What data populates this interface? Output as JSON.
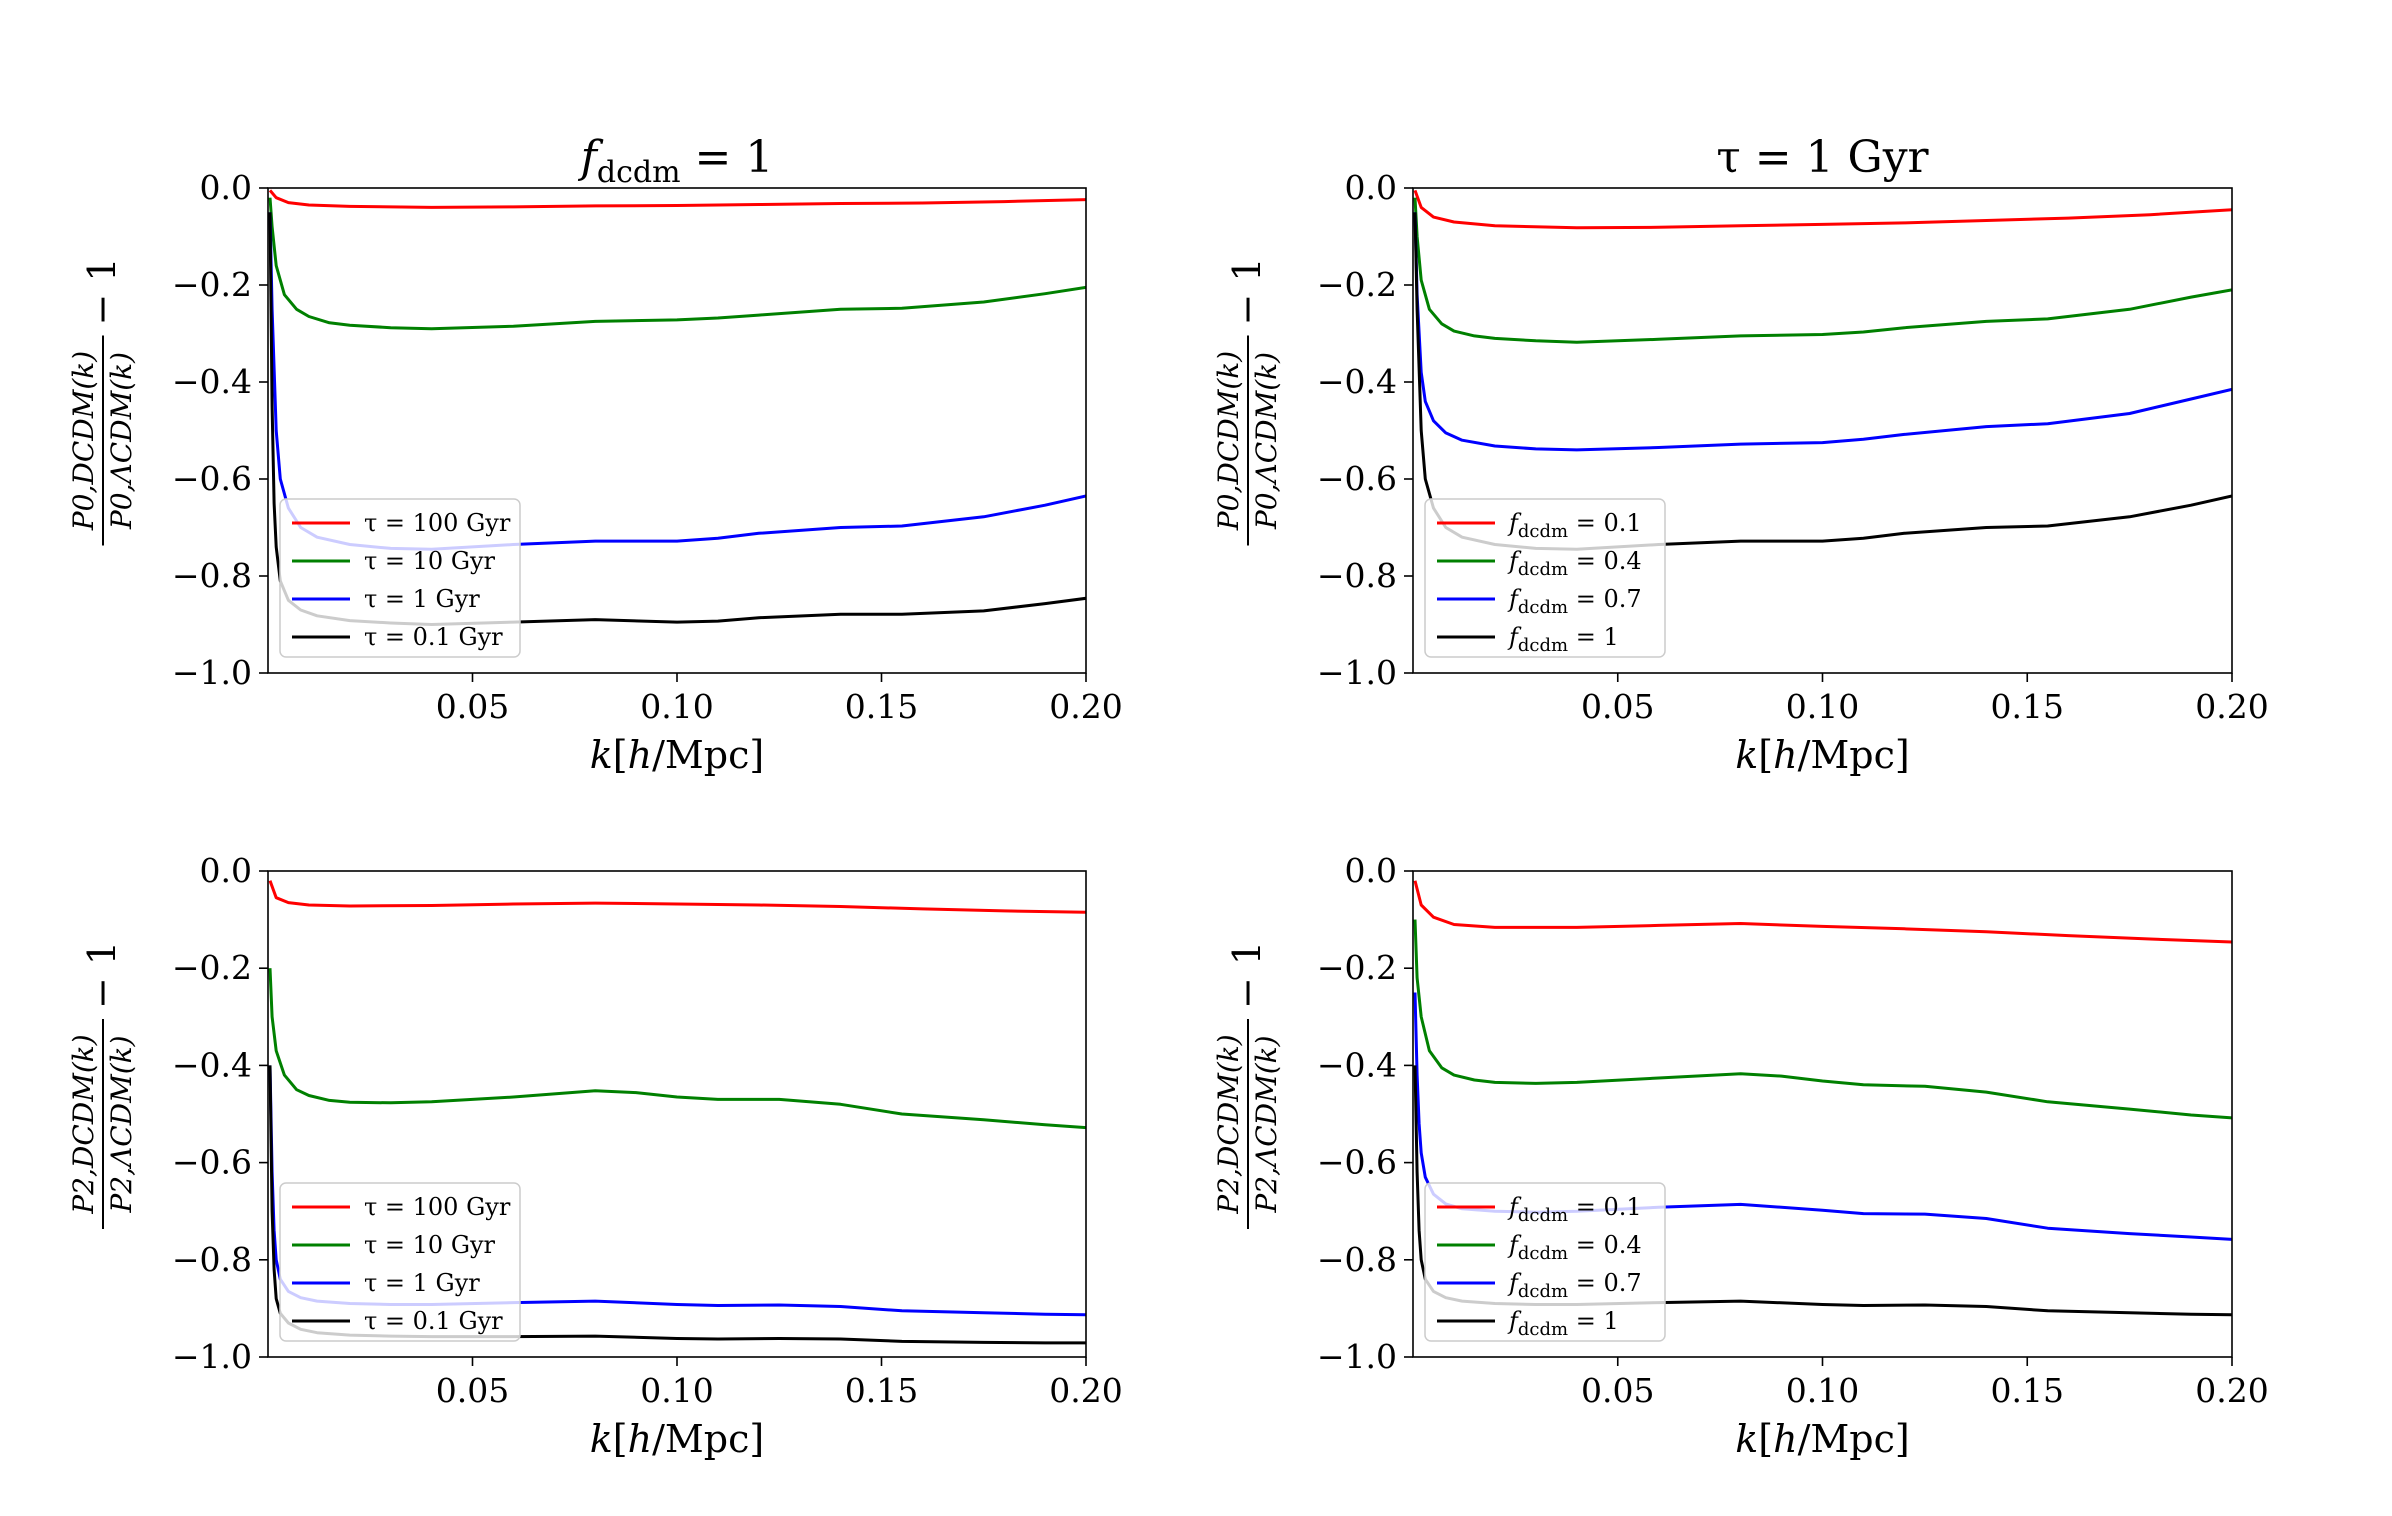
{
  "chart_data": [
    {
      "type": "line",
      "panel": "top-left",
      "title": "f_dcdm = 1",
      "title_main": "f",
      "title_sub": "dcdm",
      "title_rest": " = 1",
      "xlabel": "k [h/Mpc]",
      "ylabel": "P_{0,DCDM}(k) / P_{0,ΛCDM}(k) − 1",
      "ylabel_sub": "0",
      "xlim": [
        0.0,
        0.2
      ],
      "ylim": [
        -1.0,
        0.0
      ],
      "xticks": [
        0.05,
        0.1,
        0.15,
        0.2
      ],
      "xtick_labels": [
        "0.05",
        "0.10",
        "0.15",
        "0.20"
      ],
      "yticks": [
        0.0,
        -0.2,
        -0.4,
        -0.6,
        -0.8,
        -1.0
      ],
      "ytick_labels": [
        "0.0",
        "−0.2",
        "−0.4",
        "−0.6",
        "−0.8",
        "−1.0"
      ],
      "legend_position": "lower-left",
      "series": [
        {
          "name": "τ = 100 Gyr",
          "color": "#ff0000",
          "x": [
            0.0005,
            0.002,
            0.005,
            0.01,
            0.02,
            0.04,
            0.06,
            0.08,
            0.1,
            0.12,
            0.14,
            0.16,
            0.18,
            0.2
          ],
          "values": [
            -0.005,
            -0.02,
            -0.03,
            -0.035,
            -0.038,
            -0.04,
            -0.039,
            -0.037,
            -0.036,
            -0.034,
            -0.032,
            -0.031,
            -0.028,
            -0.024
          ]
        },
        {
          "name": "τ = 10 Gyr",
          "color": "#008000",
          "x": [
            0.0005,
            0.001,
            0.002,
            0.004,
            0.007,
            0.01,
            0.015,
            0.02,
            0.03,
            0.04,
            0.06,
            0.08,
            0.1,
            0.11,
            0.12,
            0.14,
            0.155,
            0.175,
            0.19,
            0.2
          ],
          "values": [
            -0.02,
            -0.08,
            -0.16,
            -0.22,
            -0.25,
            -0.265,
            -0.278,
            -0.283,
            -0.288,
            -0.29,
            -0.285,
            -0.275,
            -0.272,
            -0.268,
            -0.262,
            -0.25,
            -0.248,
            -0.235,
            -0.218,
            -0.205
          ]
        },
        {
          "name": "τ = 1 Gyr",
          "color": "#0000ff",
          "x": [
            0.0005,
            0.001,
            0.002,
            0.003,
            0.005,
            0.008,
            0.012,
            0.02,
            0.03,
            0.04,
            0.06,
            0.08,
            0.1,
            0.11,
            0.12,
            0.14,
            0.155,
            0.175,
            0.19,
            0.2
          ],
          "values": [
            -0.05,
            -0.25,
            -0.5,
            -0.6,
            -0.66,
            -0.7,
            -0.72,
            -0.735,
            -0.743,
            -0.745,
            -0.735,
            -0.728,
            -0.728,
            -0.722,
            -0.712,
            -0.7,
            -0.697,
            -0.678,
            -0.654,
            -0.635
          ]
        },
        {
          "name": "τ = 0.1 Gyr",
          "color": "#000000",
          "x": [
            0.0005,
            0.001,
            0.0015,
            0.002,
            0.003,
            0.005,
            0.008,
            0.012,
            0.02,
            0.03,
            0.04,
            0.06,
            0.08,
            0.1,
            0.11,
            0.12,
            0.14,
            0.155,
            0.175,
            0.19,
            0.2
          ],
          "values": [
            -0.05,
            -0.45,
            -0.65,
            -0.74,
            -0.81,
            -0.85,
            -0.87,
            -0.882,
            -0.892,
            -0.897,
            -0.9,
            -0.895,
            -0.89,
            -0.895,
            -0.893,
            -0.886,
            -0.879,
            -0.879,
            -0.872,
            -0.857,
            -0.846
          ]
        }
      ]
    },
    {
      "type": "line",
      "panel": "top-right",
      "title": "τ = 1 Gyr",
      "title_main": "τ = 1 Gyr",
      "xlabel": "k [h/Mpc]",
      "ylabel": "P_{0,DCDM}(k) / P_{0,ΛCDM}(k) − 1",
      "ylabel_sub": "0",
      "xlim": [
        0.0,
        0.2
      ],
      "ylim": [
        -1.0,
        0.0
      ],
      "xticks": [
        0.05,
        0.1,
        0.15,
        0.2
      ],
      "xtick_labels": [
        "0.05",
        "0.10",
        "0.15",
        "0.20"
      ],
      "yticks": [
        0.0,
        -0.2,
        -0.4,
        -0.6,
        -0.8,
        -1.0
      ],
      "ytick_labels": [
        "0.0",
        "−0.2",
        "−0.4",
        "−0.6",
        "−0.8",
        "−1.0"
      ],
      "legend_position": "lower-left",
      "series": [
        {
          "name": "f_dcdm = 0.1",
          "value_label": " = 0.1",
          "color": "#ff0000",
          "x": [
            0.0005,
            0.002,
            0.005,
            0.01,
            0.02,
            0.04,
            0.06,
            0.08,
            0.1,
            0.12,
            0.14,
            0.16,
            0.18,
            0.2
          ],
          "values": [
            -0.005,
            -0.04,
            -0.06,
            -0.07,
            -0.078,
            -0.082,
            -0.081,
            -0.078,
            -0.075,
            -0.072,
            -0.067,
            -0.062,
            -0.055,
            -0.045
          ]
        },
        {
          "name": "f_dcdm = 0.4",
          "value_label": " = 0.4",
          "color": "#008000",
          "x": [
            0.0005,
            0.001,
            0.002,
            0.004,
            0.007,
            0.01,
            0.015,
            0.02,
            0.03,
            0.04,
            0.06,
            0.08,
            0.1,
            0.11,
            0.12,
            0.14,
            0.155,
            0.175,
            0.19,
            0.2
          ],
          "values": [
            -0.02,
            -0.1,
            -0.19,
            -0.25,
            -0.28,
            -0.295,
            -0.305,
            -0.31,
            -0.315,
            -0.318,
            -0.312,
            -0.305,
            -0.302,
            -0.297,
            -0.288,
            -0.275,
            -0.27,
            -0.25,
            -0.225,
            -0.21
          ]
        },
        {
          "name": "f_dcdm = 0.7",
          "value_label": " = 0.7",
          "color": "#0000ff",
          "x": [
            0.0005,
            0.001,
            0.002,
            0.003,
            0.005,
            0.008,
            0.012,
            0.02,
            0.03,
            0.04,
            0.06,
            0.08,
            0.1,
            0.11,
            0.12,
            0.14,
            0.155,
            0.175,
            0.19,
            0.2
          ],
          "values": [
            -0.05,
            -0.22,
            -0.38,
            -0.44,
            -0.48,
            -0.505,
            -0.52,
            -0.532,
            -0.538,
            -0.54,
            -0.535,
            -0.528,
            -0.525,
            -0.518,
            -0.508,
            -0.492,
            -0.486,
            -0.465,
            -0.435,
            -0.415
          ]
        },
        {
          "name": "f_dcdm = 1",
          "value_label": " = 1",
          "color": "#000000",
          "x": [
            0.0005,
            0.001,
            0.002,
            0.003,
            0.005,
            0.008,
            0.012,
            0.02,
            0.03,
            0.04,
            0.06,
            0.08,
            0.1,
            0.11,
            0.12,
            0.14,
            0.155,
            0.175,
            0.19,
            0.2
          ],
          "values": [
            -0.05,
            -0.25,
            -0.5,
            -0.6,
            -0.66,
            -0.7,
            -0.72,
            -0.735,
            -0.743,
            -0.745,
            -0.735,
            -0.728,
            -0.728,
            -0.722,
            -0.712,
            -0.7,
            -0.697,
            -0.678,
            -0.654,
            -0.635
          ]
        }
      ]
    },
    {
      "type": "line",
      "panel": "bottom-left",
      "title": "",
      "xlabel": "k [h/Mpc]",
      "ylabel": "P_{2,DCDM}(k) / P_{2,ΛCDM}(k) − 1",
      "ylabel_sub": "2",
      "xlim": [
        0.0,
        0.2
      ],
      "ylim": [
        -1.0,
        0.0
      ],
      "xticks": [
        0.05,
        0.1,
        0.15,
        0.2
      ],
      "xtick_labels": [
        "0.05",
        "0.10",
        "0.15",
        "0.20"
      ],
      "yticks": [
        0.0,
        -0.2,
        -0.4,
        -0.6,
        -0.8,
        -1.0
      ],
      "ytick_labels": [
        "0.0",
        "−0.2",
        "−0.4",
        "−0.6",
        "−0.8",
        "−1.0"
      ],
      "legend_position": "lower-left",
      "series": [
        {
          "name": "τ = 100 Gyr",
          "color": "#ff0000",
          "x": [
            0.0005,
            0.002,
            0.005,
            0.01,
            0.02,
            0.04,
            0.06,
            0.08,
            0.1,
            0.12,
            0.14,
            0.16,
            0.18,
            0.2
          ],
          "values": [
            -0.02,
            -0.055,
            -0.065,
            -0.07,
            -0.072,
            -0.071,
            -0.068,
            -0.066,
            -0.068,
            -0.07,
            -0.073,
            -0.078,
            -0.082,
            -0.085
          ]
        },
        {
          "name": "τ = 10 Gyr",
          "color": "#008000",
          "x": [
            0.0005,
            0.001,
            0.002,
            0.004,
            0.007,
            0.01,
            0.015,
            0.02,
            0.03,
            0.04,
            0.06,
            0.08,
            0.09,
            0.1,
            0.11,
            0.125,
            0.14,
            0.155,
            0.175,
            0.19,
            0.2
          ],
          "values": [
            -0.2,
            -0.3,
            -0.37,
            -0.42,
            -0.45,
            -0.462,
            -0.472,
            -0.476,
            -0.477,
            -0.475,
            -0.465,
            -0.452,
            -0.456,
            -0.465,
            -0.47,
            -0.47,
            -0.48,
            -0.5,
            -0.512,
            -0.522,
            -0.528
          ]
        },
        {
          "name": "τ = 1 Gyr",
          "color": "#0000ff",
          "x": [
            0.0005,
            0.001,
            0.0015,
            0.002,
            0.003,
            0.005,
            0.008,
            0.012,
            0.02,
            0.03,
            0.04,
            0.06,
            0.08,
            0.1,
            0.11,
            0.125,
            0.14,
            0.155,
            0.175,
            0.19,
            0.2
          ],
          "values": [
            -0.4,
            -0.62,
            -0.74,
            -0.8,
            -0.84,
            -0.865,
            -0.878,
            -0.885,
            -0.89,
            -0.892,
            -0.892,
            -0.888,
            -0.885,
            -0.892,
            -0.894,
            -0.893,
            -0.896,
            -0.905,
            -0.909,
            -0.912,
            -0.913
          ]
        },
        {
          "name": "τ = 0.1 Gyr",
          "color": "#000000",
          "x": [
            0.0005,
            0.001,
            0.0015,
            0.002,
            0.003,
            0.005,
            0.008,
            0.012,
            0.02,
            0.03,
            0.04,
            0.06,
            0.08,
            0.1,
            0.11,
            0.125,
            0.14,
            0.155,
            0.175,
            0.19,
            0.2
          ],
          "values": [
            -0.4,
            -0.7,
            -0.82,
            -0.88,
            -0.91,
            -0.93,
            -0.943,
            -0.95,
            -0.955,
            -0.957,
            -0.958,
            -0.958,
            -0.957,
            -0.962,
            -0.963,
            -0.962,
            -0.963,
            -0.968,
            -0.97,
            -0.971,
            -0.971
          ]
        }
      ]
    },
    {
      "type": "line",
      "panel": "bottom-right",
      "title": "",
      "xlabel": "k [h/Mpc]",
      "ylabel": "P_{2,DCDM}(k) / P_{2,ΛCDM}(k) − 1",
      "ylabel_sub": "2",
      "xlim": [
        0.0,
        0.2
      ],
      "ylim": [
        -1.0,
        0.0
      ],
      "xticks": [
        0.05,
        0.1,
        0.15,
        0.2
      ],
      "xtick_labels": [
        "0.05",
        "0.10",
        "0.15",
        "0.20"
      ],
      "yticks": [
        0.0,
        -0.2,
        -0.4,
        -0.6,
        -0.8,
        -1.0
      ],
      "ytick_labels": [
        "0.0",
        "−0.2",
        "−0.4",
        "−0.6",
        "−0.8",
        "−1.0"
      ],
      "legend_position": "lower-left",
      "series": [
        {
          "name": "f_dcdm = 0.1",
          "value_label": " = 0.1",
          "color": "#ff0000",
          "x": [
            0.0005,
            0.002,
            0.005,
            0.01,
            0.02,
            0.04,
            0.06,
            0.08,
            0.1,
            0.12,
            0.14,
            0.16,
            0.18,
            0.2
          ],
          "values": [
            -0.02,
            -0.07,
            -0.095,
            -0.11,
            -0.116,
            -0.116,
            -0.112,
            -0.108,
            -0.114,
            -0.119,
            -0.125,
            -0.133,
            -0.14,
            -0.146
          ]
        },
        {
          "name": "f_dcdm = 0.4",
          "value_label": " = 0.4",
          "color": "#008000",
          "x": [
            0.0005,
            0.001,
            0.002,
            0.004,
            0.007,
            0.01,
            0.015,
            0.02,
            0.03,
            0.04,
            0.06,
            0.08,
            0.09,
            0.1,
            0.11,
            0.125,
            0.14,
            0.155,
            0.175,
            0.19,
            0.2
          ],
          "values": [
            -0.1,
            -0.22,
            -0.3,
            -0.37,
            -0.405,
            -0.42,
            -0.43,
            -0.435,
            -0.437,
            -0.435,
            -0.426,
            -0.417,
            -0.422,
            -0.432,
            -0.44,
            -0.443,
            -0.455,
            -0.475,
            -0.49,
            -0.502,
            -0.508
          ]
        },
        {
          "name": "f_dcdm = 0.7",
          "value_label": " = 0.7",
          "color": "#0000ff",
          "x": [
            0.0005,
            0.001,
            0.0015,
            0.002,
            0.003,
            0.005,
            0.008,
            0.012,
            0.02,
            0.03,
            0.04,
            0.06,
            0.08,
            0.1,
            0.11,
            0.125,
            0.14,
            0.155,
            0.175,
            0.19,
            0.2
          ],
          "values": [
            -0.25,
            -0.42,
            -0.52,
            -0.58,
            -0.63,
            -0.665,
            -0.685,
            -0.695,
            -0.7,
            -0.702,
            -0.7,
            -0.692,
            -0.686,
            -0.698,
            -0.705,
            -0.706,
            -0.715,
            -0.735,
            -0.746,
            -0.753,
            -0.758
          ]
        },
        {
          "name": "f_dcdm = 1",
          "value_label": " = 1",
          "color": "#000000",
          "x": [
            0.0005,
            0.001,
            0.0015,
            0.002,
            0.003,
            0.005,
            0.008,
            0.012,
            0.02,
            0.03,
            0.04,
            0.06,
            0.08,
            0.1,
            0.11,
            0.125,
            0.14,
            0.155,
            0.175,
            0.19,
            0.2
          ],
          "values": [
            -0.4,
            -0.62,
            -0.74,
            -0.8,
            -0.84,
            -0.865,
            -0.878,
            -0.885,
            -0.89,
            -0.892,
            -0.892,
            -0.888,
            -0.885,
            -0.892,
            -0.894,
            -0.893,
            -0.896,
            -0.905,
            -0.909,
            -0.912,
            -0.913
          ]
        }
      ]
    }
  ]
}
